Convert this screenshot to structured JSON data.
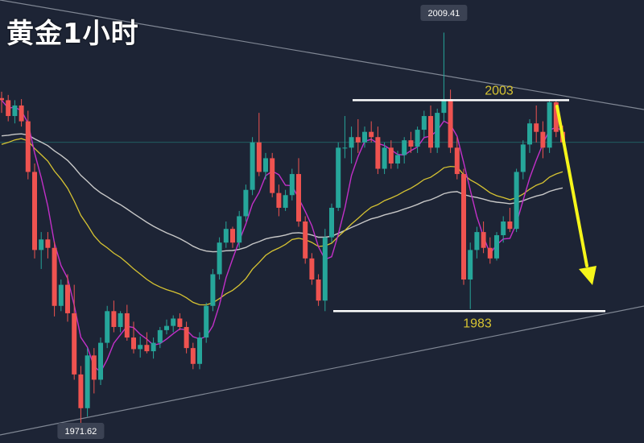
{
  "title": "黄金1小时",
  "chart_data": {
    "type": "candlestick",
    "instrument_title": "黄金1小时",
    "price_labels": {
      "high": "2009.41",
      "low": "1971.62"
    },
    "levels": [
      {
        "label": "2003",
        "value": 2003
      },
      {
        "label": "1983",
        "value": 1983
      }
    ],
    "ylim": [
      1970.5,
      2012.5
    ],
    "annotations": [
      "yellow arrow pointing down from 2003 resistance toward 1983 support"
    ],
    "colors": {
      "up": "#26a69a",
      "down": "#ef5350",
      "ma_fast": "#c230c8",
      "ma_mid": "#d6c332",
      "ma_slow": "#c8c8c8",
      "level_line": "#ffffff",
      "arrow": "#f5f51a",
      "trend_line": "#9aa0ac",
      "label_bg": "#3b4253"
    },
    "candles": [
      [
        2003.2,
        2003.8,
        2001.8,
        2003.0
      ],
      [
        2003.0,
        2003.5,
        2001.0,
        2001.5
      ],
      [
        2001.5,
        2003.0,
        2000.8,
        2002.5
      ],
      [
        2002.5,
        2003.1,
        2000.5,
        2001.0
      ],
      [
        2001.0,
        2002.0,
        1995.5,
        1996.2
      ],
      [
        1996.2,
        1997.0,
        1988.0,
        1988.8
      ],
      [
        1988.8,
        1990.5,
        1987.0,
        1989.8
      ],
      [
        1989.8,
        1990.5,
        1988.0,
        1989.0
      ],
      [
        1989.0,
        1989.6,
        1982.5,
        1983.5
      ],
      [
        1983.5,
        1986.0,
        1983.0,
        1985.5
      ],
      [
        1985.5,
        1986.5,
        1982.0,
        1982.8
      ],
      [
        1982.8,
        1985.5,
        1976.5,
        1977.0
      ],
      [
        1977.0,
        1977.8,
        1971.62,
        1973.8
      ],
      [
        1973.8,
        1979.5,
        1973.0,
        1978.8
      ],
      [
        1978.8,
        1979.5,
        1975.2,
        1976.5
      ],
      [
        1976.5,
        1980.5,
        1976.0,
        1980.0
      ],
      [
        1980.0,
        1983.5,
        1979.5,
        1983.0
      ],
      [
        1983.0,
        1984.0,
        1981.0,
        1981.5
      ],
      [
        1981.5,
        1983.0,
        1981.0,
        1982.8
      ],
      [
        1982.8,
        1983.6,
        1980.2,
        1980.5
      ],
      [
        1980.5,
        1982.0,
        1979.0,
        1979.4
      ],
      [
        1979.4,
        1980.6,
        1978.6,
        1979.8
      ],
      [
        1979.8,
        1981.0,
        1979.0,
        1979.2
      ],
      [
        1979.2,
        1980.5,
        1978.5,
        1980.0
      ],
      [
        1980.0,
        1981.5,
        1979.5,
        1981.2
      ],
      [
        1981.2,
        1982.2,
        1980.8,
        1981.6
      ],
      [
        1981.6,
        1982.6,
        1981.0,
        1982.3
      ],
      [
        1982.3,
        1982.8,
        1981.2,
        1981.5
      ],
      [
        1981.5,
        1982.0,
        1979.0,
        1979.5
      ],
      [
        1979.5,
        1980.0,
        1977.5,
        1978.0
      ],
      [
        1978.0,
        1981.0,
        1977.5,
        1980.5
      ],
      [
        1980.5,
        1983.8,
        1980.0,
        1983.5
      ],
      [
        1983.5,
        1987.0,
        1983.0,
        1986.5
      ],
      [
        1986.5,
        1990.0,
        1986.0,
        1989.5
      ],
      [
        1989.5,
        1991.5,
        1989.0,
        1990.8
      ],
      [
        1990.8,
        1991.0,
        1989.0,
        1989.5
      ],
      [
        1989.5,
        1992.5,
        1989.0,
        1992.0
      ],
      [
        1992.0,
        1995.0,
        1991.5,
        1994.5
      ],
      [
        1994.5,
        1999.5,
        1994.0,
        1999.0
      ],
      [
        1999.0,
        2001.8,
        1995.8,
        1996.2
      ],
      [
        1996.2,
        1998.0,
        1995.5,
        1997.5
      ],
      [
        1997.5,
        1998.0,
        1993.8,
        1994.2
      ],
      [
        1994.2,
        1995.0,
        1992.0,
        1992.8
      ],
      [
        1992.8,
        1994.5,
        1992.5,
        1994.0
      ],
      [
        1994.0,
        1996.5,
        1993.5,
        1996.0
      ],
      [
        1996.0,
        1997.5,
        1991.0,
        1991.5
      ],
      [
        1991.5,
        1992.0,
        1987.5,
        1988.0
      ],
      [
        1988.0,
        1988.5,
        1985.5,
        1986.0
      ],
      [
        1986.0,
        1986.5,
        1983.5,
        1984.0
      ],
      [
        1984.0,
        1990.8,
        1983.0,
        1990.0
      ],
      [
        1990.0,
        1993.2,
        1989.5,
        1992.8
      ],
      [
        1992.8,
        1999.0,
        1992.5,
        1998.5
      ],
      [
        1998.5,
        2001.5,
        1997.5,
        1998.5
      ],
      [
        1998.5,
        2000.5,
        1997.0,
        1999.5
      ],
      [
        1999.5,
        2001.2,
        1998.0,
        1999.0
      ],
      [
        1999.0,
        2000.5,
        1998.5,
        2000.0
      ],
      [
        2000.0,
        2001.0,
        1999.0,
        1999.5
      ],
      [
        1999.5,
        2000.5,
        1996.0,
        1996.5
      ],
      [
        1996.5,
        1999.0,
        1996.0,
        1998.5
      ],
      [
        1998.5,
        1999.2,
        1996.5,
        1997.0
      ],
      [
        1997.0,
        1998.2,
        1996.5,
        1997.8
      ],
      [
        1997.8,
        1999.5,
        1997.0,
        1999.2
      ],
      [
        1999.2,
        2000.0,
        1998.0,
        1998.6
      ],
      [
        1998.6,
        2000.5,
        1998.0,
        2000.2
      ],
      [
        2000.2,
        2002.0,
        1999.5,
        2001.5
      ],
      [
        2001.5,
        2002.5,
        1998.0,
        1998.5
      ],
      [
        1998.5,
        2002.2,
        1998.0,
        2001.8
      ],
      [
        2001.8,
        2009.41,
        2001.0,
        2003.1
      ],
      [
        2003.1,
        2004.0,
        1998.0,
        1998.5
      ],
      [
        1998.5,
        1999.5,
        1995.5,
        1996.0
      ],
      [
        1996.0,
        1996.5,
        1985.5,
        1986.0
      ],
      [
        1986.0,
        1989.5,
        1983.2,
        1988.8
      ],
      [
        1988.8,
        1991.0,
        1988.0,
        1990.5
      ],
      [
        1990.5,
        1991.5,
        1988.5,
        1989.0
      ],
      [
        1989.0,
        1990.0,
        1987.5,
        1988.0
      ],
      [
        1988.0,
        1990.5,
        1987.8,
        1990.2
      ],
      [
        1990.2,
        1992.0,
        1989.5,
        1991.5
      ],
      [
        1991.5,
        1992.8,
        1990.5,
        1990.8
      ],
      [
        1990.8,
        1996.5,
        1990.5,
        1996.2
      ],
      [
        1996.2,
        1999.2,
        1995.5,
        1998.8
      ],
      [
        1998.8,
        2001.2,
        1998.0,
        2000.8
      ],
      [
        2000.8,
        2002.5,
        1999.0,
        2000.0
      ],
      [
        2000.0,
        2001.0,
        1997.5,
        1998.5
      ],
      [
        1998.5,
        2003.1,
        1998.0,
        2002.8
      ],
      [
        2002.8,
        2003.0,
        1999.5,
        2000.0
      ],
      [
        2000.0,
        2000.6,
        1998.8,
        1999.0
      ]
    ]
  }
}
